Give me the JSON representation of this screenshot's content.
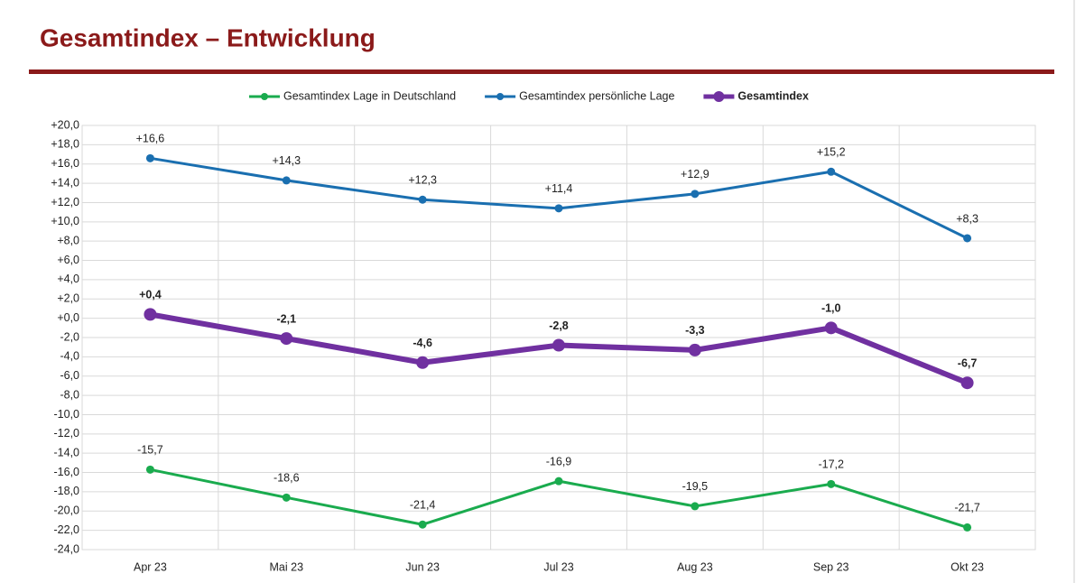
{
  "chart_data": {
    "type": "line",
    "title": "Gesamtindex – Entwicklung",
    "categories": [
      "Apr 23",
      "Mai 23",
      "Jun 23",
      "Jul 23",
      "Aug 23",
      "Sep 23",
      "Okt 23"
    ],
    "series": [
      {
        "name": "Gesamtindex Lage in Deutschland",
        "color": "#1aab4e",
        "values": [
          -15.7,
          -18.6,
          -21.4,
          -16.9,
          -19.5,
          -17.2,
          -21.7
        ],
        "value_labels": [
          "-15,7",
          "-18,6",
          "-21,4",
          "-16,9",
          "-19,5",
          "-17,2",
          "-21,7"
        ]
      },
      {
        "name": "Gesamtindex persönliche Lage",
        "color": "#1a6fb0",
        "values": [
          16.6,
          14.3,
          12.3,
          11.4,
          12.9,
          15.2,
          8.3
        ],
        "value_labels": [
          "+16,6",
          "+14,3",
          "+12,3",
          "+11,4",
          "+12,9",
          "+15,2",
          "+8,3"
        ]
      },
      {
        "name": "Gesamtindex",
        "color": "#7030a0",
        "bold": true,
        "values": [
          0.4,
          -2.1,
          -4.6,
          -2.8,
          -3.3,
          -1.0,
          -6.7
        ],
        "value_labels": [
          "+0,4",
          "-2,1",
          "-4,6",
          "-2,8",
          "-3,3",
          "-1,0",
          "-6,7"
        ]
      }
    ],
    "ylim": [
      -24,
      20
    ],
    "yticks": [
      {
        "value": 20,
        "label": "+20,0"
      },
      {
        "value": 18,
        "label": "+18,0"
      },
      {
        "value": 16,
        "label": "+16,0"
      },
      {
        "value": 14,
        "label": "+14,0"
      },
      {
        "value": 12,
        "label": "+12,0"
      },
      {
        "value": 10,
        "label": "+10,0"
      },
      {
        "value": 8,
        "label": "+8,0"
      },
      {
        "value": 6,
        "label": "+6,0"
      },
      {
        "value": 4,
        "label": "+4,0"
      },
      {
        "value": 2,
        "label": "+2,0"
      },
      {
        "value": 0,
        "label": "+0,0"
      },
      {
        "value": -2,
        "label": "-2,0"
      },
      {
        "value": -4,
        "label": "-4,0"
      },
      {
        "value": -6,
        "label": "-6,0"
      },
      {
        "value": -8,
        "label": "-8,0"
      },
      {
        "value": -10,
        "label": "-10,0"
      },
      {
        "value": -12,
        "label": "-12,0"
      },
      {
        "value": -14,
        "label": "-14,0"
      },
      {
        "value": -16,
        "label": "-16,0"
      },
      {
        "value": -18,
        "label": "-18,0"
      },
      {
        "value": -20,
        "label": "-20,0"
      },
      {
        "value": -22,
        "label": "-22,0"
      },
      {
        "value": -24,
        "label": "-24,0"
      }
    ],
    "grid": true,
    "legend": "top"
  }
}
